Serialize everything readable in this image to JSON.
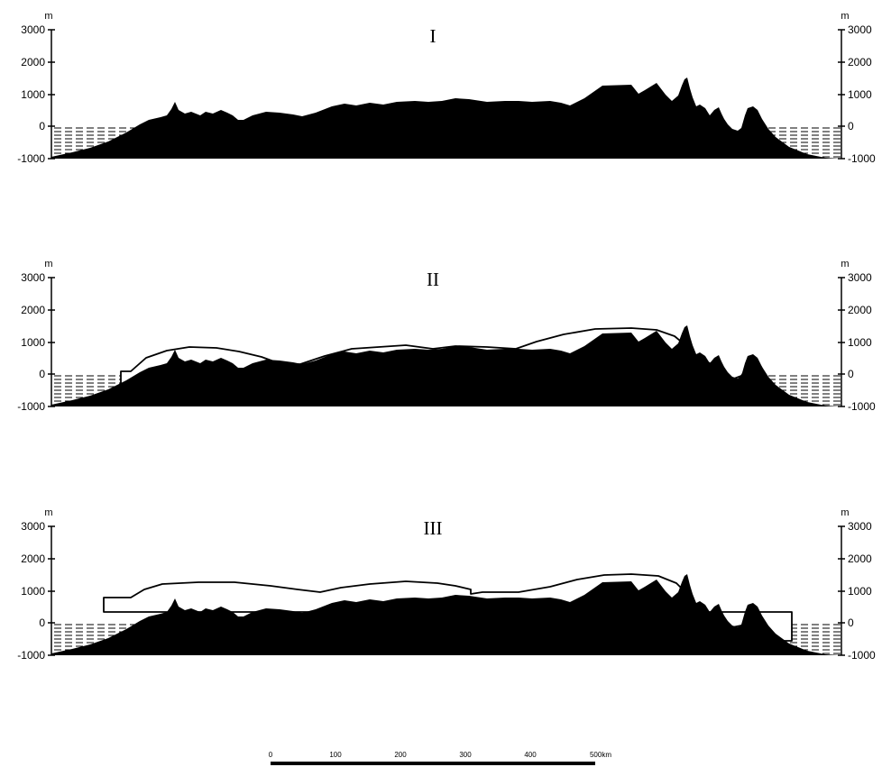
{
  "units": "m",
  "axis_ticks": [
    "3000",
    "2000",
    "1000",
    "0",
    "-1000"
  ],
  "colors": {
    "land": "#000000",
    "sea_hatch": "#000000",
    "ice": "#ffffff",
    "background": "#ffffff"
  },
  "panels": [
    {
      "title": "I",
      "has_ice": false
    },
    {
      "title": "II",
      "has_ice": true
    },
    {
      "title": "III",
      "has_ice": true
    }
  ],
  "scale_bar": {
    "labels": [
      "0",
      "100",
      "200",
      "300",
      "400",
      "500km"
    ]
  }
}
